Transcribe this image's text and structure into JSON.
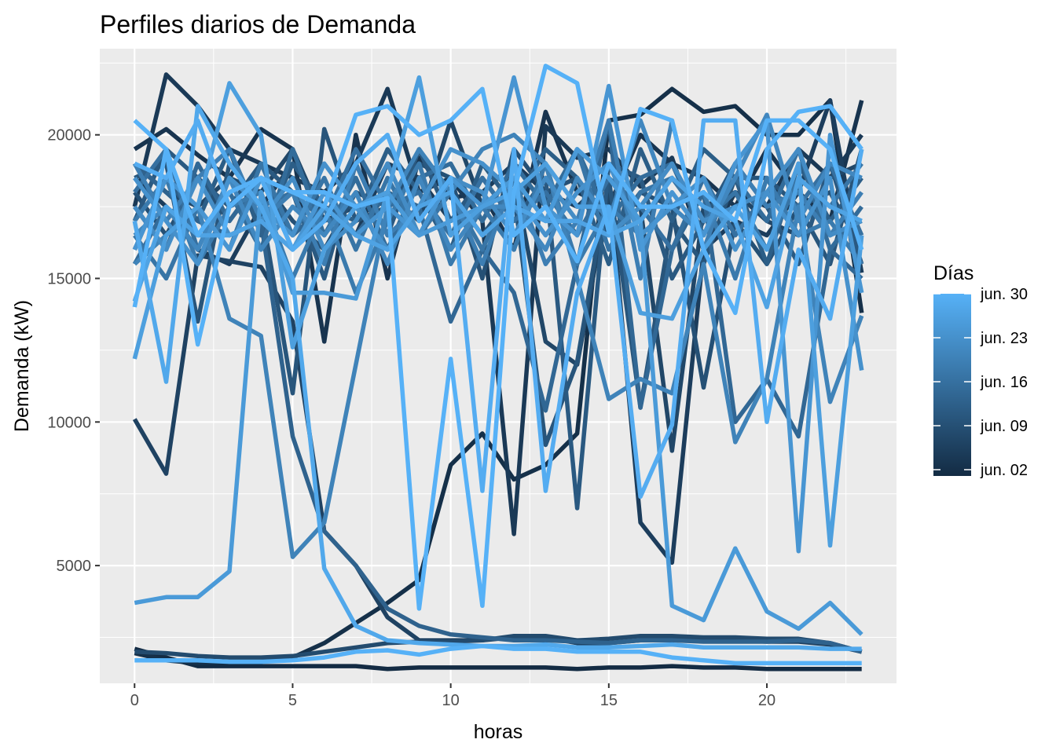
{
  "chart_data": {
    "type": "line",
    "title": "Perfiles diarios de Demanda",
    "xlabel": "horas",
    "ylabel": "Demanda (kW)",
    "xlim": [
      -1.1,
      24.1
    ],
    "ylim": [
      900,
      23000
    ],
    "x_ticks": [
      0,
      5,
      10,
      15,
      20
    ],
    "y_ticks": [
      5000,
      10000,
      15000,
      20000
    ],
    "grid": true,
    "panel_background": "#ebebeb",
    "legend": {
      "title": "Días",
      "placement": "right",
      "labels": [
        "jun. 30",
        "jun. 23",
        "jun. 16",
        "jun. 09",
        "jun. 02"
      ],
      "label_days": [
        30,
        23,
        16,
        9,
        2
      ],
      "day_range": [
        1,
        30
      ],
      "low_color": "#132b43",
      "high_color": "#56b1f7"
    },
    "x": [
      0,
      1,
      2,
      3,
      4,
      5,
      6,
      7,
      8,
      9,
      10,
      11,
      12,
      13,
      14,
      15,
      16,
      17,
      18,
      19,
      20,
      21,
      22,
      23
    ],
    "series": [
      {
        "day": 1,
        "values": [
          2100,
          1800,
          1500,
          1500,
          1500,
          1500,
          1500,
          1500,
          1400,
          1450,
          1450,
          1450,
          1450,
          1450,
          1400,
          1450,
          1450,
          1500,
          1450,
          1450,
          1400,
          1400,
          1400,
          1400
        ]
      },
      {
        "day": 2,
        "values": [
          1950,
          1700,
          1600,
          1650,
          1650,
          1800,
          2300,
          3000,
          3700,
          4500,
          8500,
          9600,
          8000,
          8500,
          9600,
          20500,
          20700,
          21600,
          20800,
          21000,
          20000,
          20000,
          21200,
          13800
        ]
      },
      {
        "day": 3,
        "values": [
          19500,
          20200,
          19300,
          18500,
          20200,
          19500,
          12800,
          20000,
          15000,
          19200,
          17800,
          18000,
          16000,
          20800,
          18000,
          17500,
          20000,
          19000,
          18500,
          17500,
          19500,
          18000,
          17000,
          21200
        ]
      },
      {
        "day": 4,
        "values": [
          17500,
          22100,
          21000,
          19500,
          19000,
          18500,
          18000,
          19000,
          21600,
          18000,
          18500,
          17000,
          6100,
          20300,
          19200,
          19500,
          18200,
          19200,
          16000,
          18000,
          17500,
          19500,
          18500,
          20000
        ]
      },
      {
        "day": 5,
        "values": [
          18500,
          17500,
          16000,
          15500,
          17500,
          19000,
          17500,
          16500,
          19000,
          18500,
          17000,
          18000,
          19000,
          18000,
          17500,
          18500,
          6500,
          5100,
          16000,
          17000,
          16500,
          18000,
          21200,
          15200
        ]
      },
      {
        "day": 6,
        "values": [
          10100,
          8200,
          15800,
          15600,
          15400,
          13500,
          6200,
          5000,
          3200,
          2400,
          2400,
          2400,
          2500,
          2500,
          2300,
          2300,
          2400,
          2400,
          2400,
          2400,
          2350,
          2350,
          2250,
          2000
        ]
      },
      {
        "day": 7,
        "values": [
          19000,
          18000,
          17500,
          18500,
          18000,
          19500,
          17000,
          17500,
          18000,
          17000,
          20500,
          17500,
          18500,
          12800,
          12000,
          18000,
          17500,
          9000,
          17500,
          18000,
          17000,
          16500,
          18500,
          19000
        ]
      },
      {
        "day": 8,
        "values": [
          2000,
          1950,
          1850,
          1800,
          1800,
          1850,
          2000,
          2150,
          2300,
          2350,
          2350,
          2400,
          2550,
          2550,
          2400,
          2450,
          2550,
          2550,
          2500,
          2500,
          2450,
          2450,
          2300,
          2000
        ]
      },
      {
        "day": 9,
        "values": [
          18000,
          16500,
          18500,
          17000,
          18500,
          17000,
          16000,
          18000,
          17500,
          19000,
          18500,
          15000,
          19500,
          18000,
          18500,
          16500,
          18000,
          17500,
          11200,
          17000,
          15500,
          17500,
          18000,
          16000
        ]
      },
      {
        "day": 10,
        "values": [
          18500,
          19000,
          13500,
          19000,
          17500,
          11000,
          20200,
          17000,
          17500,
          16500,
          18000,
          16500,
          18000,
          9200,
          12100,
          18500,
          10500,
          17000,
          15500,
          18500,
          18500,
          17500,
          15500,
          19500
        ]
      },
      {
        "day": 11,
        "values": [
          17000,
          19500,
          18500,
          17500,
          19000,
          18000,
          15000,
          19000,
          16500,
          19500,
          17000,
          18500,
          17000,
          18500,
          7000,
          19000,
          18500,
          15000,
          17000,
          19000,
          17500,
          15500,
          19000,
          15500
        ]
      },
      {
        "day": 12,
        "values": [
          16000,
          18500,
          17000,
          19500,
          16500,
          19000,
          17500,
          17000,
          19500,
          18000,
          16000,
          19000,
          17500,
          19500,
          18500,
          15500,
          19500,
          17000,
          19500,
          18500,
          15500,
          19000,
          17000,
          18500
        ]
      },
      {
        "day": 13,
        "values": [
          19000,
          18000,
          17000,
          16500,
          17000,
          9500,
          6200,
          5000,
          3500,
          2900,
          2600,
          2500,
          2400,
          2400,
          2350,
          2300,
          2400,
          2400,
          2350,
          2350,
          2350,
          2400,
          2300,
          2000
        ]
      },
      {
        "day": 14,
        "values": [
          17500,
          16000,
          19000,
          17000,
          18500,
          16500,
          17500,
          16500,
          18000,
          17500,
          13500,
          16000,
          14500,
          10400,
          15500,
          20500,
          10500,
          16000,
          18000,
          10000,
          11500,
          9500,
          16000,
          15000
        ]
      },
      {
        "day": 15,
        "values": [
          15500,
          17500,
          16500,
          18000,
          16000,
          19500,
          16500,
          18500,
          16000,
          18500,
          19000,
          17000,
          19000,
          17500,
          19500,
          17000,
          18500,
          19000,
          16500,
          18500,
          17000,
          19500,
          16000,
          17500
        ]
      },
      {
        "day": 16,
        "values": [
          18000,
          19500,
          16000,
          18500,
          17500,
          18000,
          17000,
          19500,
          17500,
          18000,
          16500,
          18500,
          17000,
          18000,
          16500,
          18500,
          17500,
          16000,
          18500,
          16500,
          18000,
          17500,
          19000,
          16500
        ]
      },
      {
        "day": 17,
        "values": [
          16500,
          15000,
          17500,
          16000,
          19000,
          16500,
          18500,
          16000,
          18500,
          16500,
          18000,
          16000,
          18500,
          17000,
          19500,
          16000,
          18000,
          18500,
          17000,
          18000,
          16000,
          18500,
          17500,
          19000
        ]
      },
      {
        "day": 18,
        "values": [
          17000,
          18500,
          15500,
          17500,
          18000,
          15000,
          17500,
          14500,
          17000,
          19000,
          15500,
          17500,
          16000,
          19000,
          15500,
          17500,
          16500,
          17500,
          18000,
          15000,
          18500,
          16500,
          17000,
          15500
        ]
      },
      {
        "day": 19,
        "values": [
          19000,
          17000,
          18500,
          19500,
          17000,
          18000,
          15500,
          19000,
          16500,
          17500,
          18000,
          15500,
          18500,
          15500,
          17000,
          20500,
          15000,
          20500,
          16000,
          19000,
          17500,
          18000,
          16500,
          18000
        ]
      },
      {
        "day": 20,
        "values": [
          15500,
          16500,
          17500,
          13600,
          13000,
          5300,
          6500,
          12000,
          17500,
          19500,
          18000,
          19500,
          20000,
          19000,
          15000,
          10800,
          11500,
          11000,
          15500,
          9300,
          11500,
          17500,
          10700,
          13700
        ]
      },
      {
        "day": 21,
        "values": [
          16500,
          17500,
          16000,
          18500,
          16000,
          17500,
          16500,
          18000,
          15500,
          18500,
          16000,
          17500,
          17500,
          16000,
          18500,
          17000,
          20500,
          17500,
          16500,
          18500,
          20700,
          17000,
          19000,
          18500
        ]
      },
      {
        "day": 22,
        "values": [
          17500,
          16000,
          18500,
          16500,
          17000,
          18500,
          16000,
          17000,
          19000,
          16500,
          18500,
          18000,
          16500,
          18500,
          17000,
          16500,
          17500,
          19000,
          17000,
          17500,
          18000,
          19500,
          16500,
          17000
        ]
      },
      {
        "day": 23,
        "values": [
          18500,
          17000,
          15500,
          18500,
          17500,
          16500,
          19000,
          17500,
          16000,
          17500,
          19500,
          19000,
          18000,
          16500,
          18000,
          19000,
          16500,
          17500,
          18500,
          16000,
          18000,
          16500,
          18500,
          11800
        ]
      },
      {
        "day": 24,
        "values": [
          16000,
          18500,
          17500,
          16000,
          18500,
          16000,
          18000,
          16500,
          17500,
          16500,
          18500,
          17500,
          22000,
          17500,
          16500,
          21700,
          16000,
          18000,
          16500,
          19000,
          20500,
          5500,
          20000,
          14500
        ]
      },
      {
        "day": 25,
        "values": [
          3700,
          3900,
          3900,
          4800,
          18000,
          14500,
          14500,
          14300,
          18000,
          16500,
          17000,
          17500,
          18500,
          17000,
          19500,
          18500,
          17000,
          3600,
          3100,
          5600,
          3400,
          2800,
          3700,
          2600
        ]
      },
      {
        "day": 26,
        "values": [
          12200,
          16500,
          17500,
          21800,
          20000,
          12600,
          16000,
          17500,
          18000,
          22000,
          16500,
          17500,
          18000,
          19000,
          17500,
          17500,
          13800,
          13600,
          16000,
          17500,
          16000,
          19000,
          5700,
          16500
        ]
      },
      {
        "day": 27,
        "values": [
          14200,
          17500,
          16500,
          16500,
          17000,
          16000,
          17500,
          16500,
          16000,
          17500,
          18000,
          16500,
          17500,
          17000,
          17000,
          16500,
          17000,
          18500,
          17500,
          17000,
          14000,
          18500,
          17500,
          17000
        ]
      },
      {
        "day": 28,
        "values": [
          17000,
          11400,
          21000,
          19000,
          17500,
          15000,
          4900,
          2900,
          2400,
          2300,
          2250,
          2200,
          2200,
          2250,
          2150,
          2150,
          2200,
          2250,
          2150,
          2150,
          2150,
          2150,
          2100,
          2100
        ]
      },
      {
        "day": 29,
        "values": [
          19000,
          18500,
          20500,
          17500,
          18500,
          16000,
          17000,
          19000,
          20000,
          17000,
          18500,
          7600,
          19500,
          7600,
          14500,
          17500,
          7400,
          9900,
          20500,
          20500,
          10000,
          16000,
          13600,
          19500
        ]
      },
      {
        "day": 30,
        "values": [
          20500,
          19500,
          16500,
          18000,
          18500,
          18000,
          18000,
          17500,
          17800,
          3500,
          12200,
          3600,
          18000,
          22400,
          21800,
          16600,
          20900,
          20500,
          16000,
          13800,
          19500,
          20800,
          21000,
          19500
        ]
      },
      {
        "day": 31,
        "values": [
          1700,
          1700,
          1700,
          1650,
          1650,
          1700,
          1800,
          2000,
          2050,
          1900,
          2100,
          2200,
          2100,
          2100,
          2000,
          2000,
          2000,
          1800,
          1700,
          1600,
          1600,
          1600,
          1600,
          1600
        ]
      },
      {
        "day": 32,
        "values": [
          14000,
          19500,
          12700,
          17500,
          18500,
          18000,
          17500,
          20700,
          21000,
          20000,
          20500,
          21600,
          16500,
          17500,
          15600,
          19000,
          17500,
          17500,
          18000,
          17000,
          20500,
          20500,
          19500,
          16000
        ]
      }
    ]
  }
}
